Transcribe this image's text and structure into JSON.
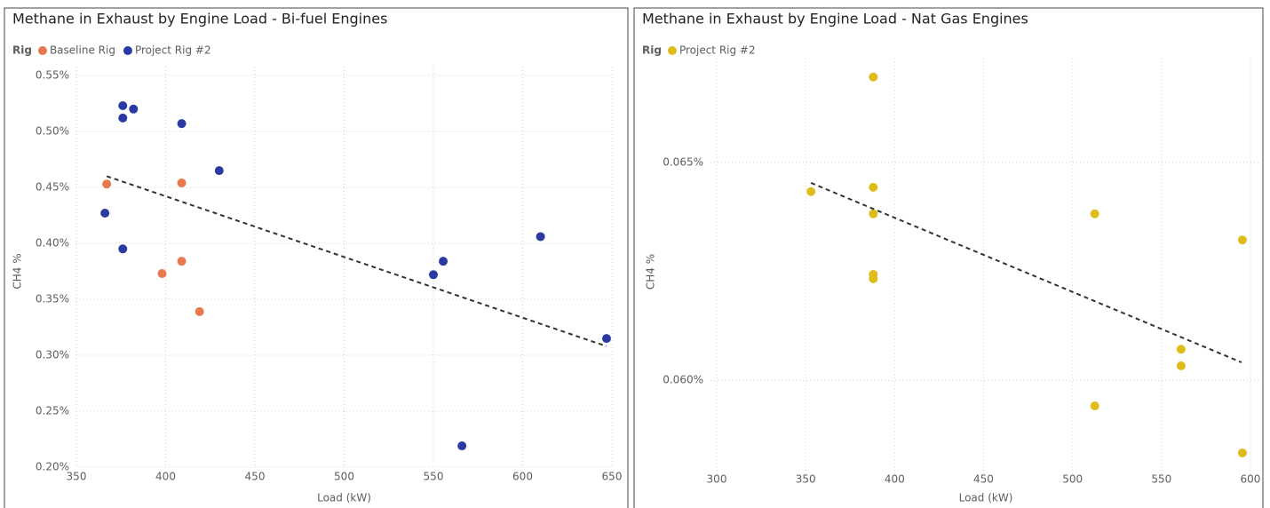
{
  "chart_data": [
    {
      "type": "scatter",
      "title": "Methane in Exhaust by Engine Load - Bi-fuel Engines",
      "legend_title": "Rig",
      "xlabel": "Load (kW)",
      "ylabel": "CH4 %",
      "xlim": [
        350,
        650
      ],
      "xticks": [
        350,
        400,
        450,
        500,
        550,
        600,
        650
      ],
      "ylim": [
        0.2,
        0.55
      ],
      "yticks": [
        {
          "value": 0.2,
          "label": "0.20%"
        },
        {
          "value": 0.25,
          "label": "0.25%"
        },
        {
          "value": 0.3,
          "label": "0.30%"
        },
        {
          "value": 0.35,
          "label": "0.35%"
        },
        {
          "value": 0.4,
          "label": "0.40%"
        },
        {
          "value": 0.45,
          "label": "0.45%"
        },
        {
          "value": 0.5,
          "label": "0.50%"
        },
        {
          "value": 0.55,
          "label": "0.55%"
        }
      ],
      "grid": true,
      "series": [
        {
          "name": "Baseline Rig",
          "color": "#e8784e",
          "x": [
            367,
            409,
            398,
            409,
            419
          ],
          "values": [
            0.453,
            0.454,
            0.373,
            0.384,
            0.339
          ]
        },
        {
          "name": "Project Rig #2",
          "color": "#2b3aa3",
          "x": [
            376,
            382,
            376,
            409,
            430,
            366,
            376,
            550,
            555.5,
            566,
            610,
            647
          ],
          "values": [
            0.523,
            0.52,
            0.512,
            0.507,
            0.465,
            0.427,
            0.395,
            0.372,
            0.384,
            0.219,
            0.406,
            0.315
          ]
        }
      ],
      "trendline": {
        "x": [
          367,
          647
        ],
        "y": [
          0.46,
          0.308
        ]
      }
    },
    {
      "type": "scatter",
      "title": "Methane in Exhaust by Engine Load - Nat Gas Engines",
      "legend_title": "Rig",
      "xlabel": "Load (kW)",
      "ylabel": "CH4 %",
      "xlim": [
        296.5,
        606
      ],
      "xticks": [
        300,
        350,
        400,
        450,
        500,
        550,
        600
      ],
      "ylim": [
        0.05778,
        0.0672
      ],
      "yticks": [
        {
          "value": 0.06,
          "label": "0.060%"
        },
        {
          "value": 0.065,
          "label": "0.065%"
        }
      ],
      "grid": true,
      "series": [
        {
          "name": "Project Rig #2",
          "color": "#e0bc1b",
          "x": [
            353,
            388,
            388,
            388,
            388,
            388,
            512.5,
            512.5,
            561,
            561,
            595.5,
            595.5
          ],
          "values": [
            0.06433,
            0.06696,
            0.06443,
            0.06382,
            0.06243,
            0.06233,
            0.06382,
            0.05941,
            0.06071,
            0.06033,
            0.06322,
            0.05833
          ]
        }
      ],
      "trendline": {
        "x": [
          353,
          595
        ],
        "y": [
          0.06453,
          0.06041
        ]
      }
    }
  ]
}
